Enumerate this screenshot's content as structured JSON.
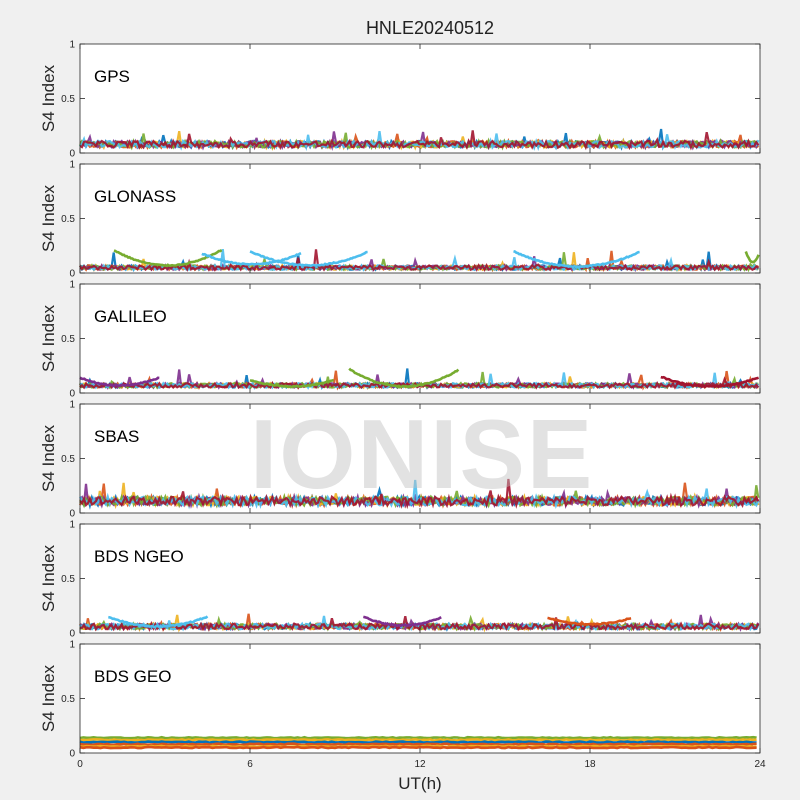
{
  "figure": {
    "title": "HNLE20240512",
    "watermark": "IONISE",
    "xlabel": "UT(h)"
  },
  "colors": {
    "palette": [
      "#0072BD",
      "#D95319",
      "#EDB120",
      "#7E2F8E",
      "#77AC30",
      "#4DBEEE",
      "#A2142F"
    ],
    "axes_bg": "#ffffff",
    "figure_bg": "#f0f0f0"
  },
  "chart_data": [
    {
      "type": "scatter",
      "panel_label": "GPS",
      "ylabel": "S4 Index",
      "xlabel": "",
      "xlim": [
        0,
        24
      ],
      "ylim": [
        0,
        1
      ],
      "xticks": [
        "0",
        "6",
        "12",
        "18",
        "24"
      ],
      "yticks": [
        "0",
        "0.5",
        "1"
      ],
      "show_xticklabels": false,
      "baseline": 0.08,
      "spread": 0.03,
      "peak": 0.2,
      "arcs": []
    },
    {
      "type": "scatter",
      "panel_label": "GLONASS",
      "ylabel": "S4 Index",
      "xlabel": "",
      "xlim": [
        0,
        24
      ],
      "ylim": [
        0,
        1
      ],
      "xticks": [
        "0",
        "6",
        "12",
        "18",
        "24"
      ],
      "yticks": [
        "0",
        "0.5",
        "1"
      ],
      "show_xticklabels": false,
      "baseline": 0.05,
      "spread": 0.02,
      "peak": 0.22,
      "arcs": [
        [
          1.2,
          5.0,
          0.21,
          0.07,
          4
        ],
        [
          4.3,
          7.8,
          0.18,
          0.08,
          5
        ],
        [
          6.0,
          10.2,
          0.2,
          0.07,
          5
        ],
        [
          15.3,
          19.8,
          0.2,
          0.06,
          5
        ],
        [
          23.5,
          24.0,
          0.2,
          0.1,
          4
        ]
      ]
    },
    {
      "type": "scatter",
      "panel_label": "GALILEO",
      "ylabel": "S4 Index",
      "xlabel": "",
      "xlim": [
        0,
        24
      ],
      "ylim": [
        0,
        1
      ],
      "xticks": [
        "0",
        "6",
        "12",
        "18",
        "24"
      ],
      "yticks": [
        "0",
        "0.5",
        "1"
      ],
      "show_xticklabels": false,
      "baseline": 0.07,
      "spread": 0.02,
      "peak": 0.22,
      "arcs": [
        [
          0.0,
          2.8,
          0.14,
          0.07,
          3
        ],
        [
          9.5,
          13.4,
          0.22,
          0.06,
          4
        ],
        [
          6.0,
          9.0,
          0.12,
          0.06,
          4
        ],
        [
          20.5,
          24.0,
          0.15,
          0.06,
          6
        ]
      ]
    },
    {
      "type": "scatter",
      "panel_label": "SBAS",
      "ylabel": "S4 Index",
      "xlabel": "",
      "xlim": [
        0,
        24
      ],
      "ylim": [
        0,
        1
      ],
      "xticks": [
        "0",
        "6",
        "12",
        "18",
        "24"
      ],
      "yticks": [
        "0",
        "0.5",
        "1"
      ],
      "show_xticklabels": false,
      "baseline": 0.11,
      "spread": 0.04,
      "peak": 0.3,
      "arcs": []
    },
    {
      "type": "scatter",
      "panel_label": "BDS NGEO",
      "ylabel": "S4 Index",
      "xlabel": "",
      "xlim": [
        0,
        24
      ],
      "ylim": [
        0,
        1
      ],
      "xticks": [
        "0",
        "6",
        "12",
        "18",
        "24"
      ],
      "yticks": [
        "0",
        "0.5",
        "1"
      ],
      "show_xticklabels": false,
      "baseline": 0.06,
      "spread": 0.025,
      "peak": 0.17,
      "arcs": [
        [
          1.0,
          4.5,
          0.15,
          0.06,
          5
        ],
        [
          10.0,
          12.8,
          0.15,
          0.07,
          3
        ],
        [
          16.5,
          19.5,
          0.14,
          0.08,
          1
        ]
      ]
    },
    {
      "type": "scatter",
      "panel_label": "BDS GEO",
      "ylabel": "S4 Index",
      "xlabel": "UT(h)",
      "xlim": [
        0,
        24
      ],
      "ylim": [
        0,
        1
      ],
      "xticks": [
        "0",
        "6",
        "12",
        "18",
        "24"
      ],
      "yticks": [
        "0",
        "0.5",
        "1"
      ],
      "show_xticklabels": true,
      "baseline": 0.1,
      "spread": 0.01,
      "peak": 0.15,
      "bands": [
        [
          0.14,
          4
        ],
        [
          0.12,
          2
        ],
        [
          0.1,
          0
        ],
        [
          0.08,
          1
        ],
        [
          0.06,
          2
        ],
        [
          0.05,
          1
        ]
      ],
      "arcs": []
    }
  ]
}
